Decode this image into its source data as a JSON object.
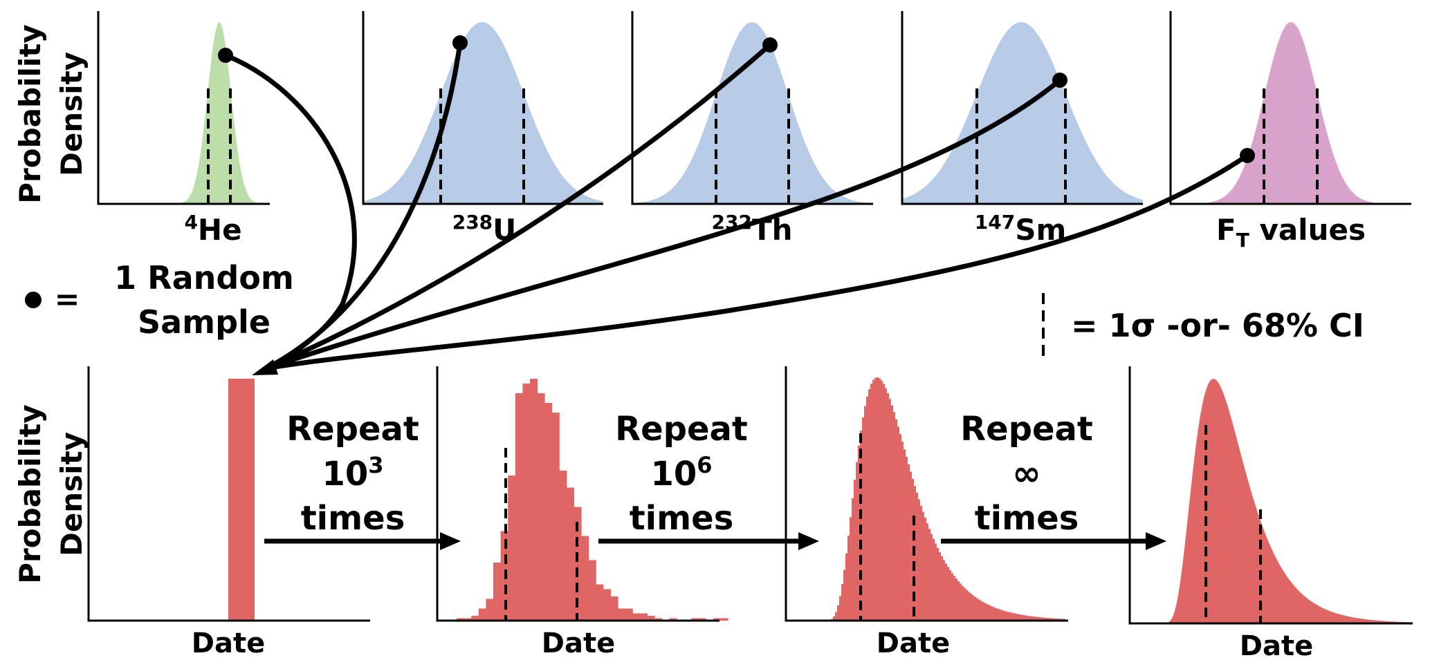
{
  "colors": {
    "green": "#bcdcaa",
    "blue": "#b8cbe6",
    "pink": "#d9a2cb",
    "red": "#e06666",
    "ink": "#000000"
  },
  "y_axis_label_line1": "Probability",
  "y_axis_label_line2": "Density",
  "input_distributions": [
    {
      "id": "he4",
      "color_key": "green",
      "label_sup": "4",
      "label_main": "He",
      "label_sub": ""
    },
    {
      "id": "u238",
      "color_key": "blue",
      "label_sup": "238",
      "label_main": "U",
      "label_sub": ""
    },
    {
      "id": "th232",
      "color_key": "blue",
      "label_sup": "232",
      "label_main": "Th",
      "label_sub": ""
    },
    {
      "id": "sm147",
      "color_key": "blue",
      "label_sup": "147",
      "label_main": "Sm",
      "label_sub": ""
    },
    {
      "id": "ft",
      "color_key": "pink",
      "label_sup": "",
      "label_main": "F",
      "label_sub": "T",
      "label_rest": " values"
    }
  ],
  "legend": {
    "random_sample_eq": "=",
    "random_sample_line1": "1 Random",
    "random_sample_line2": "Sample",
    "ci_text": "= 1σ -or- 68% CI"
  },
  "output_panels": [
    {
      "id": "single",
      "xlabel": "Date"
    },
    {
      "id": "hist-coarse",
      "xlabel": "Date"
    },
    {
      "id": "hist-fine",
      "xlabel": "Date"
    },
    {
      "id": "smooth",
      "xlabel": "Date"
    }
  ],
  "repeat_steps": [
    {
      "line1": "Repeat",
      "count_base": "10",
      "count_exp": "3",
      "line3": "times"
    },
    {
      "line1": "Repeat",
      "count_base": "10",
      "count_exp": "6",
      "line3": "times"
    },
    {
      "line1": "Repeat",
      "count_base": "∞",
      "count_exp": "",
      "line3": "times"
    }
  ],
  "coarse_histogram_bins": [
    1,
    1,
    2,
    5,
    9,
    24,
    37,
    60,
    94,
    98,
    100,
    94,
    90,
    86,
    62,
    55,
    47,
    35,
    25,
    15,
    13,
    10,
    5,
    5,
    3,
    3,
    2,
    1,
    0,
    1,
    0,
    0,
    1,
    1,
    0,
    1,
    1
  ]
}
